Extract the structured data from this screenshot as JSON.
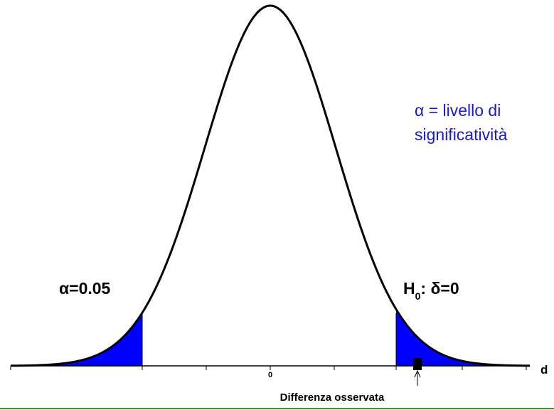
{
  "annotation": {
    "line1": "α = livello di",
    "line2": "significatività"
  },
  "alpha_label": "α=0.05",
  "hypothesis": {
    "symbol": "H",
    "subscript": "0",
    "rest": ": δ=0"
  },
  "axis": {
    "origin_label": "0",
    "variable_label": "d"
  },
  "observed_label": "Differenza osservata"
}
